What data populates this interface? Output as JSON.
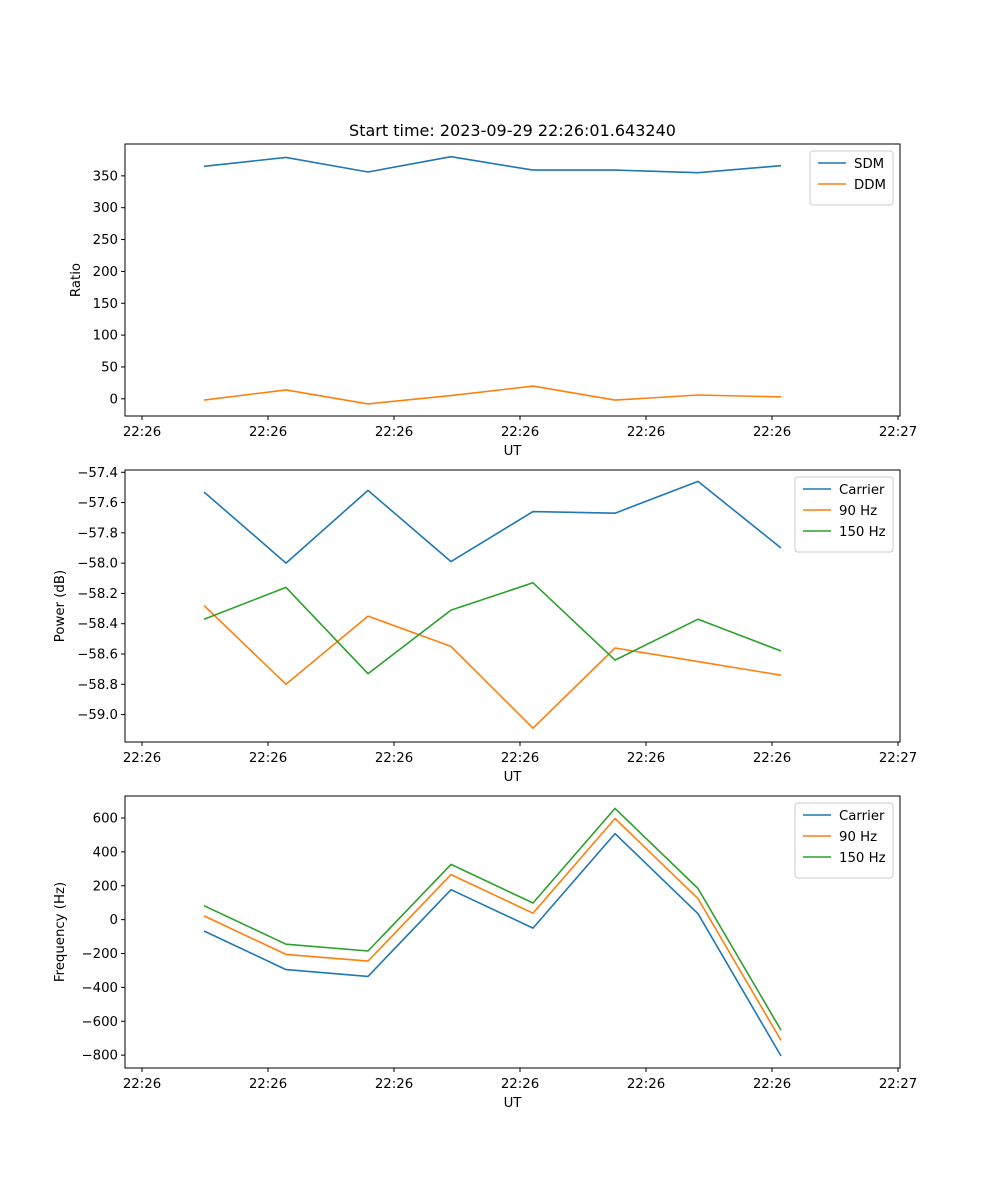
{
  "figure_title": "Start time: 2023-09-29 22:26:01.643240",
  "chart_data": [
    {
      "type": "line",
      "title": "Start time: 2023-09-29 22:26:01.643240",
      "xlabel": "UT",
      "ylabel": "Ratio",
      "x_tick_labels": [
        "22:26",
        "22:26",
        "22:26",
        "22:26",
        "22:26",
        "22:26",
        "22:26"
      ],
      "x_end_tick_label": "22:27",
      "y_ticks": [
        0,
        50,
        100,
        150,
        200,
        250,
        300,
        350
      ],
      "y_tick_labels": [
        "0",
        "50",
        "100",
        "150",
        "200",
        "250",
        "300",
        "350"
      ],
      "ylim": [
        -27,
        400
      ],
      "legend_position": "upper right",
      "series": [
        {
          "name": "SDM",
          "color": "#1f77b4",
          "values": [
            365,
            379,
            356,
            380,
            359,
            359,
            355,
            366
          ]
        },
        {
          "name": "DDM",
          "color": "#ff7f0e",
          "values": [
            -2,
            14,
            -8,
            5,
            20,
            -2,
            6,
            3
          ]
        }
      ]
    },
    {
      "type": "line",
      "xlabel": "UT",
      "ylabel": "Power (dB)",
      "x_tick_labels": [
        "22:26",
        "22:26",
        "22:26",
        "22:26",
        "22:26",
        "22:26",
        "22:26"
      ],
      "x_end_tick_label": "22:27",
      "y_ticks": [
        -59.0,
        -58.8,
        -58.6,
        -58.4,
        -58.2,
        -58.0,
        -57.8,
        -57.6,
        -57.4
      ],
      "y_tick_labels": [
        "−59.0",
        "−58.8",
        "−58.6",
        "−58.4",
        "−58.2",
        "−58.0",
        "−57.8",
        "−57.6",
        "−57.4"
      ],
      "ylim": [
        -59.181,
        -57.385
      ],
      "legend_position": "upper right",
      "series": [
        {
          "name": "Carrier",
          "color": "#1f77b4",
          "values": [
            -57.53,
            -58.0,
            -57.52,
            -57.99,
            -57.66,
            -57.67,
            -57.46,
            -57.9
          ]
        },
        {
          "name": "90 Hz",
          "color": "#ff7f0e",
          "values": [
            -58.28,
            -58.8,
            -58.35,
            -58.55,
            -59.09,
            -58.56,
            -58.65,
            -58.74
          ]
        },
        {
          "name": "150 Hz",
          "color": "#2ca02c",
          "values": [
            -58.37,
            -58.16,
            -58.73,
            -58.31,
            -58.13,
            -58.64,
            -58.37,
            -58.58
          ]
        }
      ]
    },
    {
      "type": "line",
      "xlabel": "UT",
      "ylabel": "Frequency (Hz)",
      "x_tick_labels": [
        "22:26",
        "22:26",
        "22:26",
        "22:26",
        "22:26",
        "22:26",
        "22:26"
      ],
      "x_end_tick_label": "22:27",
      "y_ticks": [
        -800,
        -600,
        -400,
        -200,
        0,
        200,
        400,
        600
      ],
      "y_tick_labels": [
        "−800",
        "−600",
        "−400",
        "−200",
        "0",
        "200",
        "400",
        "600"
      ],
      "ylim": [
        -876,
        730
      ],
      "legend_position": "upper right",
      "series": [
        {
          "name": "Carrier",
          "color": "#1f77b4",
          "values": [
            -67,
            -295,
            -335,
            177,
            -50,
            508,
            35,
            -805
          ]
        },
        {
          "name": "90 Hz",
          "color": "#ff7f0e",
          "values": [
            22,
            -205,
            -245,
            266,
            38,
            597,
            124,
            -713
          ]
        },
        {
          "name": "150 Hz",
          "color": "#2ca02c",
          "values": [
            82,
            -145,
            -185,
            326,
            98,
            657,
            184,
            -653
          ]
        }
      ]
    }
  ]
}
